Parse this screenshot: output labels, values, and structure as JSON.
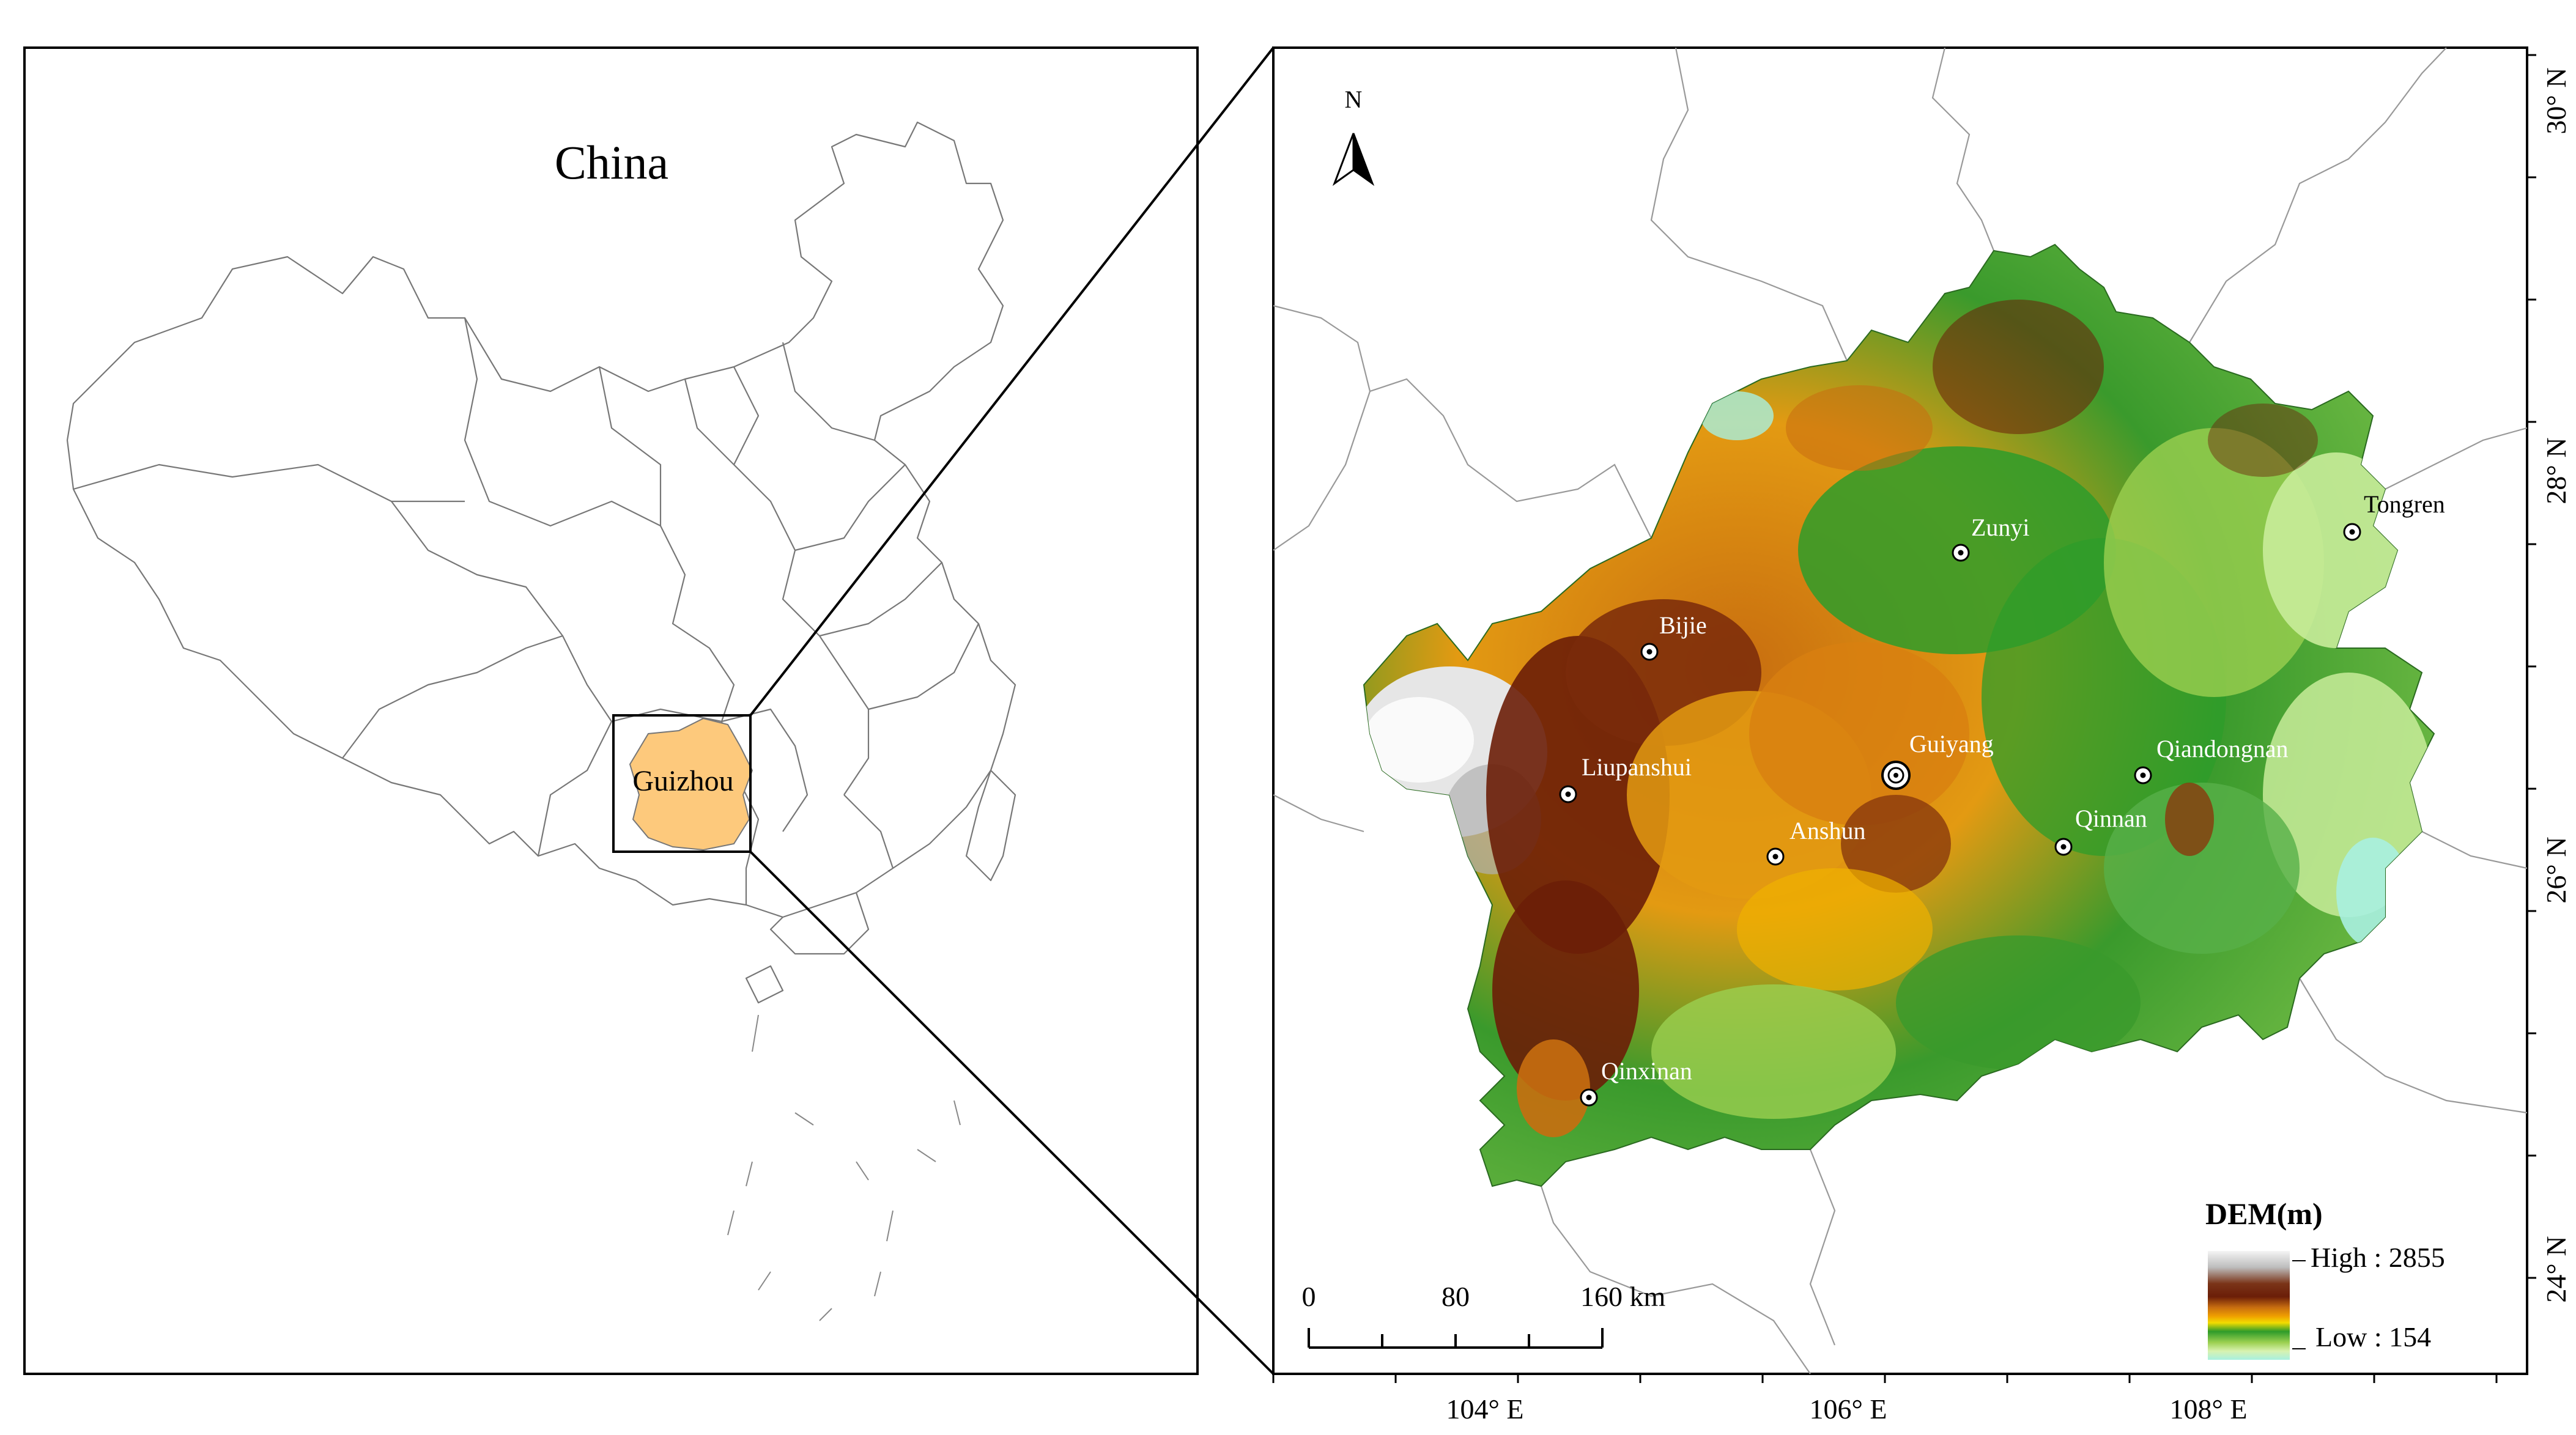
{
  "overview": {
    "country_label": "China",
    "province_label": "Guizhou"
  },
  "detail_map": {
    "north_label": "N",
    "cities": [
      {
        "name": "Zunyi",
        "type": "city"
      },
      {
        "name": "Tongren",
        "type": "city"
      },
      {
        "name": "Bijie",
        "type": "city"
      },
      {
        "name": "Guiyang",
        "type": "capital"
      },
      {
        "name": "Liupanshui",
        "type": "city"
      },
      {
        "name": "Qiandongnan",
        "type": "city"
      },
      {
        "name": "Anshun",
        "type": "city"
      },
      {
        "name": "Qinnan",
        "type": "city"
      },
      {
        "name": "Qinxinan",
        "type": "city"
      }
    ],
    "lon_ticks": [
      "104° E",
      "106° E",
      "108° E"
    ],
    "lat_ticks": [
      "30° N",
      "28° N",
      "26° N",
      "24° N"
    ],
    "scale_bar": {
      "labels": [
        "0",
        "80",
        "160 km"
      ]
    },
    "legend": {
      "title": "DEM(m)",
      "high": "High : 2855",
      "low": "Low : 154",
      "colors": [
        "#f2f2f2",
        "#c8c8c8",
        "#8a6a5a",
        "#6b1e08",
        "#8a3a0c",
        "#c86e10",
        "#f0a000",
        "#f2dc00",
        "#9bd050",
        "#2e9c2a",
        "#58b048",
        "#c8ec9a",
        "#a8f0e0"
      ]
    }
  }
}
